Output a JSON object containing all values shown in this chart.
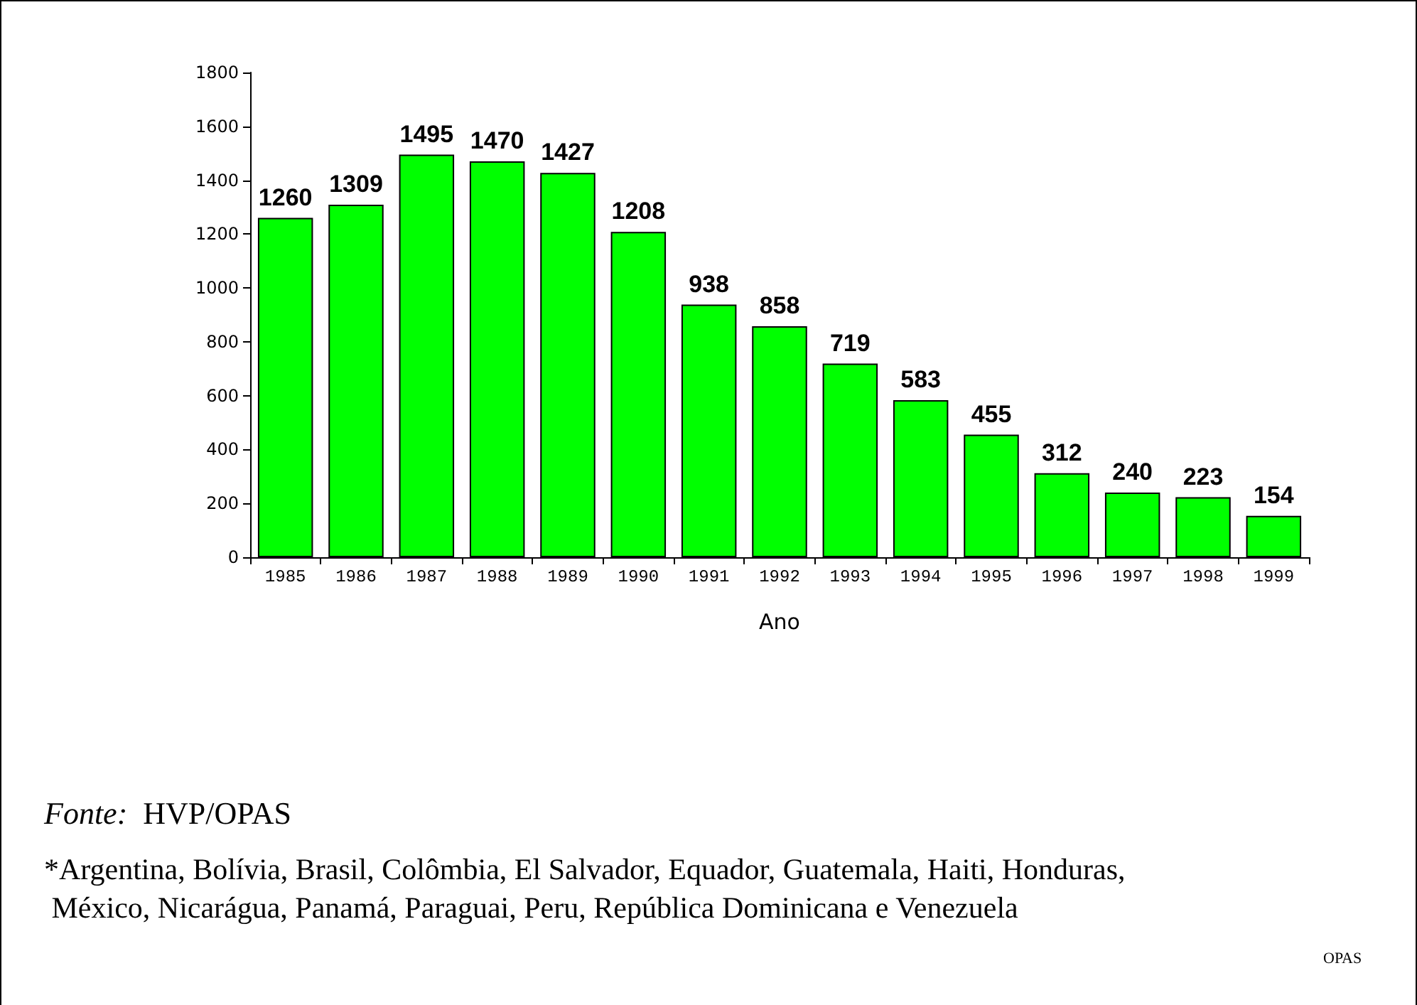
{
  "chart_data": {
    "type": "bar",
    "xlabel": "Ano",
    "categories": [
      "1985",
      "1986",
      "1987",
      "1988",
      "1989",
      "1990",
      "1991",
      "1992",
      "1993",
      "1994",
      "1995",
      "1996",
      "1997",
      "1998",
      "1999"
    ],
    "values": [
      1260,
      1309,
      1495,
      1470,
      1427,
      1208,
      938,
      858,
      719,
      583,
      455,
      312,
      240,
      223,
      154
    ],
    "color": "#00ff00",
    "ylim": [
      0,
      1800
    ],
    "yticks": [
      0,
      200,
      400,
      600,
      800,
      1000,
      1200,
      1400,
      1600,
      1800
    ],
    "data_labels": true,
    "grid": false,
    "annotations": [
      "Fonte: HVP/OPAS",
      "*Argentina, Bolívia, Brasil, Colômbia, El Salvador, Equador, Guatemala, Haiti, Honduras, México, Nicarágua, Panamá, Paraguai, Peru, República Dominicana e Venezuela",
      "OPAS"
    ]
  }
}
